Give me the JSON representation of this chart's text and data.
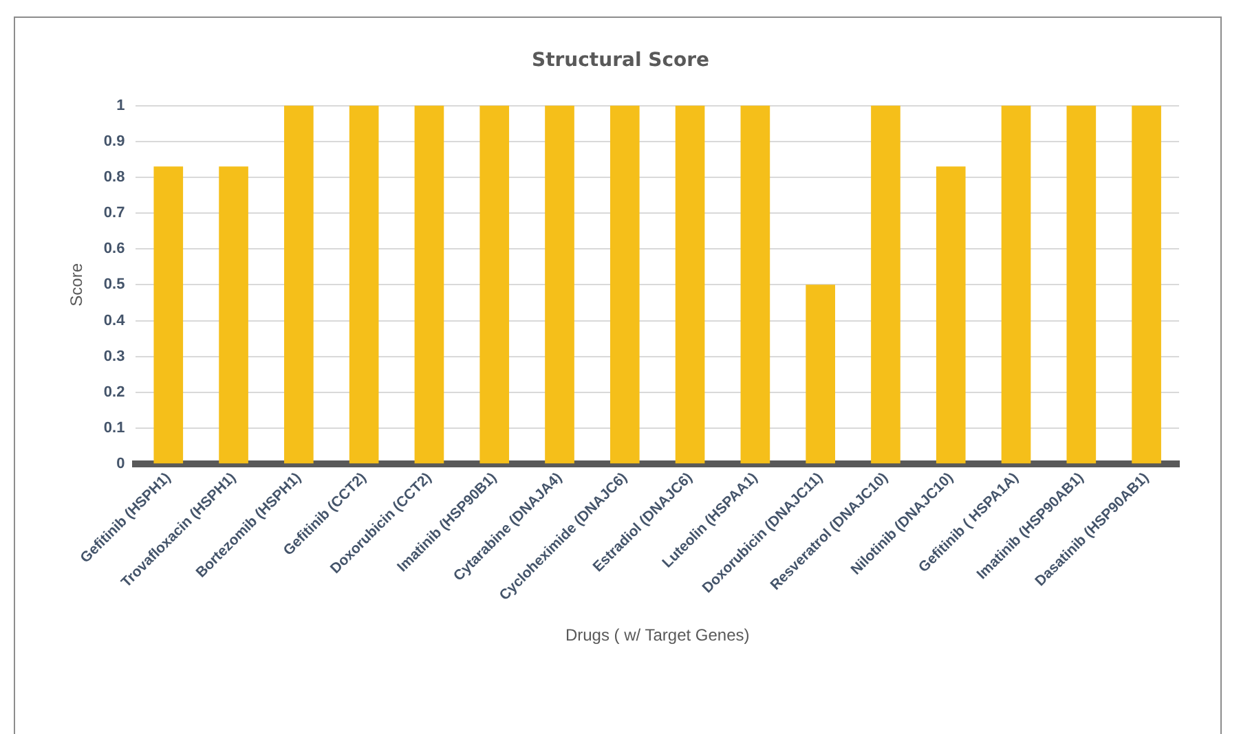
{
  "chart_data": {
    "type": "bar",
    "title": "Structural Score",
    "xlabel": "Drugs ( w/ Target Genes)",
    "ylabel": "Score",
    "categories": [
      "Gefitinib (HSPH1)",
      "Trovafloxacin (HSPH1)",
      "Bortezomib (HSPH1)",
      "Gefitinib (CCT2)",
      "Doxorubicin (CCT2)",
      "Imatinib (HSP90B1)",
      "Cytarabine (DNAJA4)",
      "Cycloheximide (DNAJC6)",
      "Estradiol (DNAJC6)",
      "Luteolin (HSPAA1)",
      "Doxorubicin (DNAJC11)",
      "Resveratrol (DNAJC10)",
      "Nilotinib (DNAJC10)",
      "Gefitinib ( HSPA1A)",
      "Imatinib (HSP90AB1)",
      "Dasatinib (HSP90AB1)"
    ],
    "values": [
      0.83,
      0.83,
      1,
      1,
      1,
      1,
      1,
      1,
      1,
      1,
      0.5,
      1,
      0.83,
      1,
      1,
      1
    ],
    "color": "#f5bf1a",
    "ylim": [
      0,
      1
    ],
    "yticks": [
      0,
      0.1,
      0.2,
      0.3,
      0.4,
      0.5,
      0.6,
      0.7,
      0.8,
      0.9,
      1
    ],
    "grid": "y",
    "legend": false
  }
}
